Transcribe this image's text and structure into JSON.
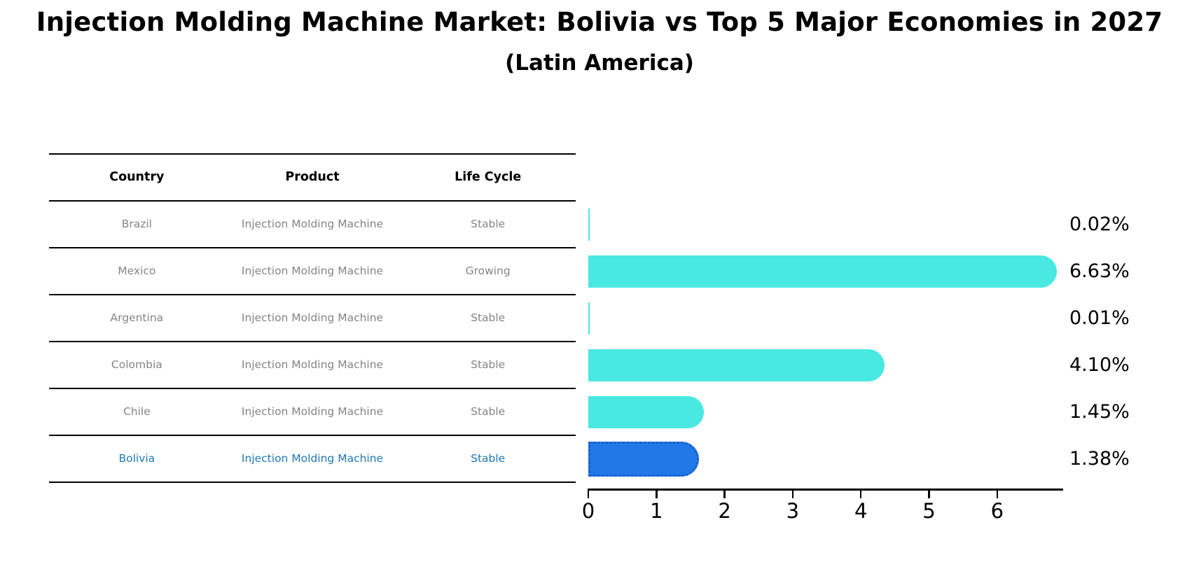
{
  "header": {
    "title": "Injection Molding Machine Market: Bolivia vs Top 5 Major Economies in 2027",
    "subtitle": "(Latin America)"
  },
  "table": {
    "columns": [
      "Country",
      "Product",
      "Life Cycle"
    ],
    "rows": [
      {
        "country": "Brazil",
        "product": "Injection Molding Machine",
        "life_cycle": "Stable",
        "highlighted": false
      },
      {
        "country": "Mexico",
        "product": "Injection Molding Machine",
        "life_cycle": "Growing",
        "highlighted": false
      },
      {
        "country": "Argentina",
        "product": "Injection Molding Machine",
        "life_cycle": "Stable",
        "highlighted": false
      },
      {
        "country": "Colombia",
        "product": "Injection Molding Machine",
        "life_cycle": "Stable",
        "highlighted": false
      },
      {
        "country": "Chile",
        "product": "Injection Molding Machine",
        "life_cycle": "Stable",
        "highlighted": false
      },
      {
        "country": "Bolivia",
        "product": "Injection Molding Machine",
        "life_cycle": "Stable",
        "highlighted": true
      }
    ]
  },
  "chart_data": {
    "type": "bar",
    "orientation": "horizontal",
    "title": "Injection Molding Machine Market: Bolivia vs Top 5 Major Economies in 2027",
    "subtitle": "(Latin America)",
    "categories": [
      "Brazil",
      "Mexico",
      "Argentina",
      "Colombia",
      "Chile",
      "Bolivia"
    ],
    "values": [
      0.02,
      6.63,
      0.01,
      4.1,
      1.45,
      1.38
    ],
    "value_labels": [
      "0.02%",
      "6.63%",
      "0.01%",
      "4.10%",
      "1.45%",
      "1.38%"
    ],
    "x_ticks": [
      "0",
      "1",
      "2",
      "3",
      "4",
      "5",
      "6"
    ],
    "xlim": [
      0,
      7
    ],
    "grid": false,
    "legend": false,
    "bar_color": "#4AE8E2",
    "highlight_index": 5,
    "highlight_bar_color": "#2178E6",
    "highlight_bar_border_color": "#1A5FC8",
    "highlight_text_color": "#1F77B4"
  },
  "colors": {
    "background": "#FFFFFF",
    "table_text": "#848484",
    "table_header_text": "#000000",
    "axis": "#000000",
    "value_label_text": "#000000"
  }
}
